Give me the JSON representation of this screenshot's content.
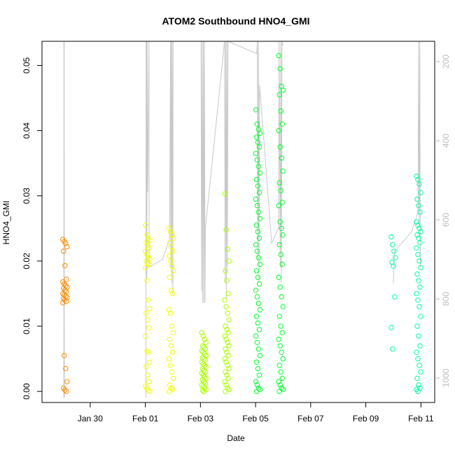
{
  "chart_data": {
    "type": "scatter",
    "title": "ATOM2 Southbound HNO4_GMI",
    "xlabel": "Date",
    "ylabel": "HNO4_GMI",
    "xlim": [
      "2017-01-28T06:00",
      "2017-02-11T12:00"
    ],
    "ylim": [
      -0.0017,
      0.0537
    ],
    "x_ticks": [
      {
        "date": "2017-01-30",
        "label": "Jan 30"
      },
      {
        "date": "2017-02-01",
        "label": "Feb 01"
      },
      {
        "date": "2017-02-03",
        "label": "Feb 03"
      },
      {
        "date": "2017-02-05",
        "label": "Feb 05"
      },
      {
        "date": "2017-02-07",
        "label": "Feb 07"
      },
      {
        "date": "2017-02-09",
        "label": "Feb 09"
      },
      {
        "date": "2017-02-11",
        "label": "Feb 11"
      }
    ],
    "y_ticks": [
      0.0,
      0.01,
      0.02,
      0.03,
      0.04,
      0.05
    ],
    "y_tick_labels": [
      "0.00",
      "0.01",
      "0.02",
      "0.03",
      "0.04",
      "0.05"
    ],
    "y2_axis": {
      "reversed": true,
      "ticks": [
        200,
        400,
        600,
        800,
        1000
      ],
      "color": "#bdbdbd"
    },
    "line_color": "#c8c8c8",
    "flights": [
      {
        "date": "2017-01-29",
        "color": "#ff8c00",
        "clusters": [
          {
            "x": "2017-01-29T02:00",
            "yvals": [
              0.0233,
              0.023,
              0.0227,
              0.0222,
              0.0215,
              0.0193,
              0.0172,
              0.0168,
              0.0165,
              0.0162,
              0.016,
              0.0158,
              0.0155,
              0.0153,
              0.015,
              0.0148,
              0.0146,
              0.0144,
              0.0142,
              0.014,
              0.0138,
              0.0136,
              0.0055,
              0.0035,
              0.0015,
              0.0005,
              0.0002,
              0.0
            ]
          }
        ],
        "alt_path": [
          [
            "2017-01-29T01:00",
            1050
          ],
          [
            "2017-01-29T01:06",
            150
          ],
          [
            "2017-01-29T01:10",
            60
          ],
          [
            "2017-01-29T01:15",
            60
          ],
          [
            "2017-01-29T01:20",
            150
          ],
          [
            "2017-01-29T01:26",
            1050
          ]
        ]
      },
      {
        "date": "2017-02-01",
        "color": "#f0ff00",
        "clusters": [
          {
            "x": "2017-02-01T02:00",
            "yvals": [
              0.0255,
              0.024,
              0.0235,
              0.0232,
              0.0228,
              0.0224,
              0.022,
              0.0215,
              0.021,
              0.0206,
              0.0203,
              0.02,
              0.0197,
              0.0195,
              0.019,
              0.017,
              0.014,
              0.0127,
              0.012,
              0.011,
              0.0098,
              0.0085,
              0.0062,
              0.006,
              0.0045,
              0.0038,
              0.0025,
              0.0015,
              0.0008,
              0.0005,
              0.0002,
              0.0
            ]
          },
          {
            "x": "2017-02-01T22:30",
            "yvals": [
              0.025,
              0.0245,
              0.024,
              0.0235,
              0.0228,
              0.0222,
              0.0215,
              0.0208,
              0.02,
              0.0192,
              0.0185,
              0.0175,
              0.0155,
              0.015,
              0.0125,
              0.012,
              0.01,
              0.009,
              0.008,
              0.007,
              0.006,
              0.005,
              0.004,
              0.003,
              0.002,
              0.001,
              0.0005,
              0.0003,
              0.0
            ]
          }
        ],
        "alt_path": [
          [
            "2017-02-01T00:30",
            1050
          ],
          [
            "2017-02-01T00:40",
            60
          ],
          [
            "2017-02-01T00:45",
            700
          ],
          [
            "2017-02-01T00:52",
            60
          ],
          [
            "2017-02-01T01:00",
            700
          ],
          [
            "2017-02-01T01:10",
            60
          ],
          [
            "2017-02-01T01:20",
            750
          ],
          [
            "2017-02-01T01:30",
            60
          ],
          [
            "2017-02-01T02:00",
            530
          ],
          [
            "2017-02-01T03:10",
            60
          ],
          [
            "2017-02-01T03:20",
            720
          ],
          [
            "2017-02-01T15:00",
            700
          ],
          [
            "2017-02-01T21:00",
            650
          ],
          [
            "2017-02-01T22:00",
            60
          ],
          [
            "2017-02-01T22:10",
            720
          ],
          [
            "2017-02-01T22:30",
            60
          ],
          [
            "2017-02-01T23:00",
            760
          ],
          [
            "2017-02-01T23:20",
            60
          ],
          [
            "2017-02-02T00:00",
            790
          ],
          [
            "2017-02-02T00:10",
            60
          ]
        ]
      },
      {
        "date": "2017-02-03",
        "color": "#aaff00",
        "clusters": [
          {
            "x": "2017-02-03T03:00",
            "yvals": [
              0.009,
              0.0085,
              0.008,
              0.0075,
              0.007,
              0.0068,
              0.0065,
              0.0062,
              0.006,
              0.0058,
              0.0055,
              0.0052,
              0.005,
              0.0048,
              0.0045,
              0.0042,
              0.004,
              0.0038,
              0.0035,
              0.0032,
              0.003,
              0.0028,
              0.0025,
              0.0022,
              0.002,
              0.0018,
              0.0015,
              0.0012,
              0.001,
              0.0008,
              0.0005,
              0.0003,
              0.0002,
              0.0
            ]
          },
          {
            "x": "2017-02-03T23:00",
            "yvals": [
              0.0303,
              0.0248,
              0.0218,
              0.02,
              0.0185,
              0.017,
              0.015,
              0.014,
              0.013,
              0.012,
              0.011,
              0.01,
              0.0095,
              0.009,
              0.0085,
              0.008,
              0.0075,
              0.007,
              0.0065,
              0.006,
              0.0055,
              0.005,
              0.0045,
              0.004,
              0.0035,
              0.003,
              0.0025,
              0.002,
              0.0015,
              0.001,
              0.0005,
              0.0003,
              0.0
            ]
          }
        ],
        "alt_path": [
          [
            "2017-02-03T00:30",
            60
          ],
          [
            "2017-02-03T01:00",
            780
          ],
          [
            "2017-02-03T01:30",
            60
          ],
          [
            "2017-02-03T02:00",
            810
          ],
          [
            "2017-02-03T02:30",
            60
          ],
          [
            "2017-02-03T03:00",
            810
          ],
          [
            "2017-02-03T03:30",
            60
          ],
          [
            "2017-02-03T04:00",
            810
          ],
          [
            "2017-02-03T04:20",
            620
          ],
          [
            "2017-02-03T21:00",
            60
          ],
          [
            "2017-02-03T21:30",
            760
          ],
          [
            "2017-02-03T22:00",
            60
          ],
          [
            "2017-02-03T22:30",
            800
          ],
          [
            "2017-02-03T23:00",
            60
          ],
          [
            "2017-02-03T23:30",
            720
          ],
          [
            "2017-02-04T00:00",
            60
          ]
        ]
      },
      {
        "date": "2017-02-05",
        "color": "#00ff2a",
        "clusters": [
          {
            "x": "2017-02-05T02:00",
            "yvals": [
              0.0432,
              0.041,
              0.0402,
              0.0396,
              0.039,
              0.0382,
              0.0375,
              0.0365,
              0.0355,
              0.0345,
              0.0335,
              0.0325,
              0.0315,
              0.0305,
              0.0295,
              0.0285,
              0.0275,
              0.0265,
              0.0255,
              0.0245,
              0.0235,
              0.0225,
              0.0215,
              0.0205,
              0.0195,
              0.0185,
              0.0175,
              0.0165,
              0.0155,
              0.0145,
              0.0135,
              0.0125,
              0.0115,
              0.0105,
              0.0095,
              0.0085,
              0.0075,
              0.0065,
              0.0055,
              0.0045,
              0.0035,
              0.0025,
              0.0015,
              0.001,
              0.0005,
              0.0003,
              0.0
            ]
          },
          {
            "x": "2017-02-05T22:00",
            "yvals": [
              0.0515,
              0.0495,
              0.0468,
              0.0462,
              0.0455,
              0.043,
              0.041,
              0.04,
              0.0375,
              0.0358,
              0.0338,
              0.032,
              0.0308,
              0.029,
              0.0285,
              0.026,
              0.025,
              0.024,
              0.0225,
              0.021,
              0.0195,
              0.0175,
              0.016,
              0.0145,
              0.013,
              0.0115,
              0.01,
              0.009,
              0.008,
              0.007,
              0.006,
              0.005,
              0.004,
              0.003,
              0.002,
              0.0015,
              0.001,
              0.0005,
              0.0003,
              0.0
            ]
          }
        ],
        "alt_path": [
          [
            "2017-02-04T00:00",
            60
          ],
          [
            "2017-02-05T01:00",
            180
          ],
          [
            "2017-02-05T01:30",
            60
          ],
          [
            "2017-02-05T02:00",
            700
          ],
          [
            "2017-02-05T02:30",
            60
          ],
          [
            "2017-02-05T03:00",
            760
          ],
          [
            "2017-02-05T03:30",
            260
          ],
          [
            "2017-02-05T06:00",
            350
          ],
          [
            "2017-02-05T14:00",
            660
          ],
          [
            "2017-02-05T20:00",
            620
          ],
          [
            "2017-02-05T20:30",
            60
          ],
          [
            "2017-02-05T21:30",
            720
          ],
          [
            "2017-02-05T22:00",
            60
          ],
          [
            "2017-02-05T22:30",
            760
          ],
          [
            "2017-02-05T23:00",
            60
          ],
          [
            "2017-02-06T00:00",
            160
          ]
        ]
      },
      {
        "date": "2017-02-10",
        "color": "#00ff9e",
        "clusters": [
          {
            "x": "2017-02-10T00:00",
            "yvals": [
              0.0237,
              0.0225,
              0.0215,
              0.0205,
              0.0198,
              0.0192,
              0.0145,
              0.0098,
              0.0065
            ]
          },
          {
            "x": "2017-02-10T22:00",
            "yvals": [
              0.033,
              0.0325,
              0.0318,
              0.0305,
              0.0295,
              0.0285,
              0.0275,
              0.026,
              0.0255,
              0.025,
              0.0245,
              0.024,
              0.0235,
              0.0228,
              0.022,
              0.021,
              0.02,
              0.019,
              0.018,
              0.017,
              0.016,
              0.015,
              0.014,
              0.013,
              0.0115,
              0.01,
              0.0085,
              0.007,
              0.006,
              0.005,
              0.004,
              0.003,
              0.002,
              0.001,
              0.0005,
              0.0003,
              0.0
            ]
          }
        ],
        "alt_path": [
          [
            "2017-02-10T00:00",
            760
          ],
          [
            "2017-02-10T01:00",
            680
          ],
          [
            "2017-02-10T16:00",
            630
          ],
          [
            "2017-02-10T21:30",
            580
          ],
          [
            "2017-02-10T22:00",
            60
          ],
          [
            "2017-02-10T22:30",
            620
          ],
          [
            "2017-02-10T23:00",
            60
          ],
          [
            "2017-02-10T23:30",
            720
          ]
        ]
      }
    ]
  }
}
